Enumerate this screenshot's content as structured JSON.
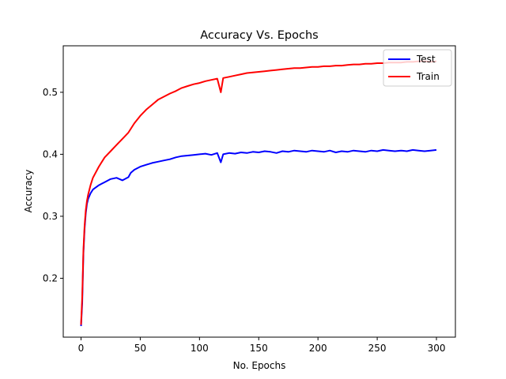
{
  "chart_data": {
    "type": "line",
    "title": "Accuracy Vs. Epochs",
    "xlabel": "No. Epochs",
    "ylabel": "Accuracy",
    "xlim": [
      -15,
      316
    ],
    "ylim": [
      0.105,
      0.575
    ],
    "xticks": [
      0,
      50,
      100,
      150,
      200,
      250,
      300
    ],
    "yticks": [
      0.2,
      0.3,
      0.4,
      0.5
    ],
    "ytick_labels": [
      "0.2",
      "0.3",
      "0.4",
      "0.5"
    ],
    "grid": false,
    "legend_position": "top-right",
    "series": [
      {
        "name": "Test",
        "color": "#0000ff",
        "x": [
          0,
          1,
          2,
          3,
          4,
          5,
          6,
          8,
          10,
          15,
          20,
          25,
          30,
          35,
          40,
          42,
          45,
          50,
          55,
          60,
          65,
          70,
          75,
          80,
          85,
          90,
          95,
          100,
          105,
          110,
          115,
          118,
          120,
          125,
          130,
          135,
          140,
          145,
          150,
          155,
          160,
          165,
          170,
          175,
          180,
          185,
          190,
          195,
          200,
          205,
          210,
          215,
          220,
          225,
          230,
          235,
          240,
          245,
          250,
          255,
          260,
          265,
          270,
          275,
          280,
          285,
          290,
          295,
          300
        ],
        "values": [
          0.123,
          0.16,
          0.24,
          0.28,
          0.305,
          0.32,
          0.328,
          0.337,
          0.343,
          0.35,
          0.355,
          0.36,
          0.362,
          0.358,
          0.363,
          0.37,
          0.375,
          0.38,
          0.383,
          0.386,
          0.388,
          0.39,
          0.392,
          0.395,
          0.397,
          0.398,
          0.399,
          0.4,
          0.401,
          0.399,
          0.402,
          0.387,
          0.4,
          0.402,
          0.401,
          0.403,
          0.402,
          0.404,
          0.403,
          0.405,
          0.404,
          0.402,
          0.405,
          0.404,
          0.406,
          0.405,
          0.404,
          0.406,
          0.405,
          0.404,
          0.406,
          0.403,
          0.405,
          0.404,
          0.406,
          0.405,
          0.404,
          0.406,
          0.405,
          0.407,
          0.406,
          0.405,
          0.406,
          0.405,
          0.407,
          0.406,
          0.405,
          0.406,
          0.407
        ]
      },
      {
        "name": "Train",
        "color": "#ff0000",
        "x": [
          0,
          1,
          2,
          3,
          4,
          5,
          6,
          8,
          10,
          15,
          20,
          25,
          30,
          35,
          40,
          45,
          50,
          55,
          60,
          65,
          70,
          75,
          80,
          85,
          90,
          95,
          100,
          105,
          110,
          115,
          118,
          120,
          125,
          130,
          135,
          140,
          145,
          150,
          155,
          160,
          165,
          170,
          175,
          180,
          185,
          190,
          195,
          200,
          205,
          210,
          215,
          220,
          225,
          230,
          235,
          240,
          245,
          250,
          255,
          260,
          265,
          270,
          275,
          280,
          285,
          290,
          295,
          300
        ],
        "values": [
          0.125,
          0.17,
          0.245,
          0.285,
          0.31,
          0.325,
          0.335,
          0.35,
          0.362,
          0.38,
          0.395,
          0.405,
          0.415,
          0.425,
          0.435,
          0.45,
          0.462,
          0.472,
          0.48,
          0.488,
          0.493,
          0.498,
          0.502,
          0.507,
          0.51,
          0.513,
          0.515,
          0.518,
          0.52,
          0.522,
          0.5,
          0.523,
          0.525,
          0.527,
          0.529,
          0.531,
          0.532,
          0.533,
          0.534,
          0.535,
          0.536,
          0.537,
          0.538,
          0.539,
          0.539,
          0.54,
          0.541,
          0.541,
          0.542,
          0.542,
          0.543,
          0.543,
          0.544,
          0.545,
          0.545,
          0.546,
          0.546,
          0.547,
          0.547,
          0.548,
          0.548,
          0.548,
          0.549,
          0.549,
          0.55,
          0.55,
          0.549,
          0.55
        ]
      }
    ]
  }
}
